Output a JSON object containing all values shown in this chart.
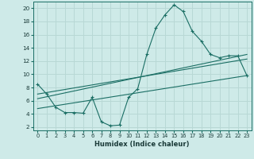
{
  "xlabel": "Humidex (Indice chaleur)",
  "bg_color": "#ceeae8",
  "grid_color": "#b8d8d5",
  "line_color": "#1a6e64",
  "xlim": [
    -0.5,
    23.5
  ],
  "ylim": [
    1.5,
    21.0
  ],
  "xticks": [
    0,
    1,
    2,
    3,
    4,
    5,
    6,
    7,
    8,
    9,
    10,
    11,
    12,
    13,
    14,
    15,
    16,
    17,
    18,
    19,
    20,
    21,
    22,
    23
  ],
  "yticks": [
    2,
    4,
    6,
    8,
    10,
    12,
    14,
    16,
    18,
    20
  ],
  "line1_x": [
    0,
    1,
    2,
    3,
    4,
    5,
    6,
    7,
    8,
    9,
    10,
    11,
    12,
    13,
    14,
    15,
    16,
    17,
    18,
    19,
    20,
    21,
    22,
    23
  ],
  "line1_y": [
    8.5,
    7.0,
    5.0,
    4.2,
    4.2,
    4.1,
    6.5,
    2.8,
    2.2,
    2.3,
    6.5,
    7.8,
    13.0,
    17.0,
    19.0,
    20.5,
    19.5,
    16.5,
    15.0,
    13.0,
    12.5,
    12.8,
    12.8,
    9.8
  ],
  "line2_x": [
    0,
    23
  ],
  "line2_y": [
    6.3,
    13.0
  ],
  "line3_x": [
    0,
    23
  ],
  "line3_y": [
    7.0,
    12.3
  ],
  "line4_x": [
    0,
    23
  ],
  "line4_y": [
    4.8,
    9.8
  ]
}
